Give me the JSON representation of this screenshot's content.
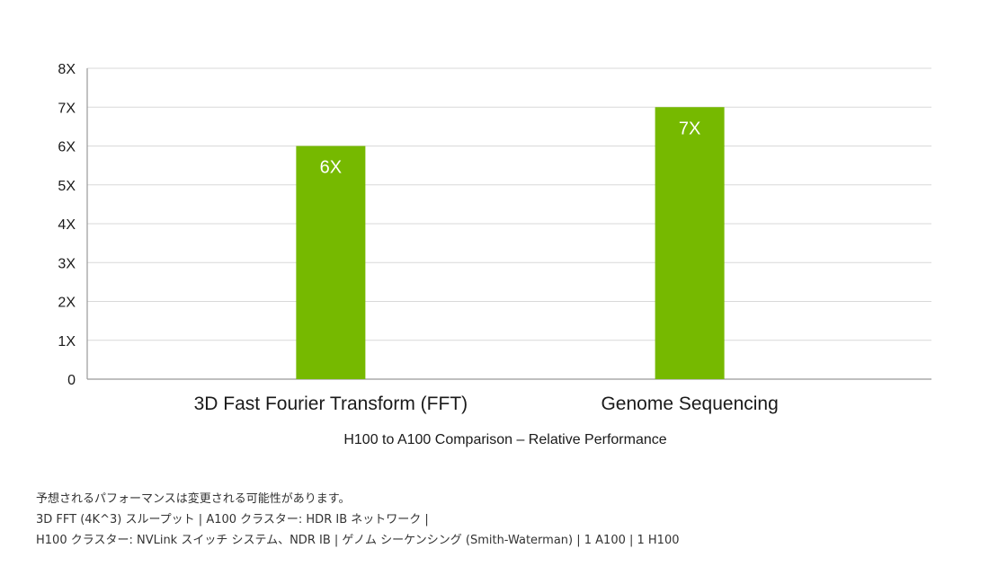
{
  "chart_data": {
    "type": "bar",
    "categories": [
      "3D Fast Fourier Transform (FFT)",
      "Genome Sequencing"
    ],
    "values": [
      6,
      7
    ],
    "value_labels": [
      "6X",
      "7X"
    ],
    "xlabel": "H100 to A100 Comparison – Relative Performance",
    "ylabel": "",
    "ylim": [
      0,
      8
    ],
    "y_ticks": [
      0,
      1,
      2,
      3,
      4,
      5,
      6,
      7,
      8
    ],
    "y_tick_labels": [
      "0",
      "1X",
      "2X",
      "3X",
      "4X",
      "5X",
      "6X",
      "7X",
      "8X"
    ],
    "grid": true,
    "bar_color": "#76b900",
    "grid_color": "#d9d9d9",
    "axis_color": "#999999"
  },
  "footnotes": [
    "予想されるパフォーマンスは変更される可能性があります。",
    "3D FFT (4K^3) スループット | A100 クラスター: HDR IB ネットワーク |",
    "H100 クラスター: NVLink スイッチ システム、NDR IB | ゲノム シーケンシング (Smith-Waterman) | 1 A100 | 1 H100"
  ]
}
